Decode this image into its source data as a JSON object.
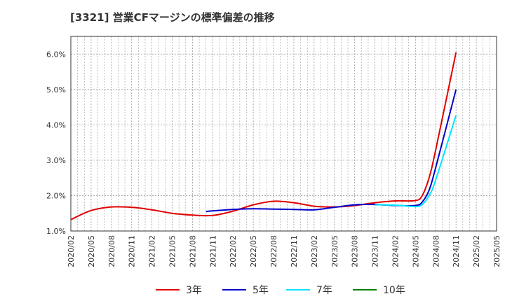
{
  "chart_data": {
    "type": "line",
    "title": "[3321]  営業CFマージンの標準偏差の推移",
    "xlabel": "",
    "ylabel": "",
    "ylim": [
      1.0,
      6.5
    ],
    "grid": true,
    "legend_position": "bottom",
    "y_ticks": [
      "1.0%",
      "2.0%",
      "3.0%",
      "4.0%",
      "5.0%",
      "6.0%"
    ],
    "x_ticks": [
      "2020/02",
      "2020/05",
      "2020/08",
      "2020/11",
      "2021/02",
      "2021/05",
      "2021/08",
      "2021/11",
      "2022/02",
      "2022/05",
      "2022/08",
      "2022/11",
      "2023/02",
      "2023/05",
      "2023/08",
      "2023/11",
      "2024/02",
      "2024/05",
      "2024/08",
      "2024/11",
      "2025/02",
      "2025/05"
    ],
    "series": [
      {
        "name": "3年",
        "color": "#e00000",
        "x": [
          "2020/02",
          "2020/05",
          "2020/08",
          "2020/11",
          "2021/02",
          "2021/05",
          "2021/08",
          "2021/11",
          "2022/02",
          "2022/05",
          "2022/08",
          "2022/11",
          "2023/02",
          "2023/05",
          "2023/08",
          "2023/11",
          "2024/02",
          "2024/05",
          "2024/06",
          "2024/07",
          "2024/08",
          "2024/11"
        ],
        "values": [
          1.32,
          1.58,
          1.68,
          1.67,
          1.6,
          1.5,
          1.45,
          1.44,
          1.56,
          1.74,
          1.84,
          1.8,
          1.7,
          1.68,
          1.72,
          1.8,
          1.85,
          1.86,
          2.0,
          2.5,
          3.3,
          6.05
        ]
      },
      {
        "name": "5年",
        "color": "#0000cc",
        "x": [
          "2021/10",
          "2021/11",
          "2022/02",
          "2022/05",
          "2022/08",
          "2022/11",
          "2023/02",
          "2023/05",
          "2023/08",
          "2023/11",
          "2024/02",
          "2024/05",
          "2024/06",
          "2024/07",
          "2024/08",
          "2024/11"
        ],
        "values": [
          1.55,
          1.57,
          1.61,
          1.63,
          1.62,
          1.61,
          1.6,
          1.67,
          1.74,
          1.75,
          1.72,
          1.72,
          1.82,
          2.15,
          2.8,
          5.0
        ]
      },
      {
        "name": "7年",
        "color": "#00e5ff",
        "x": [
          "2023/11",
          "2024/02",
          "2024/05",
          "2024/06",
          "2024/07",
          "2024/08",
          "2024/11"
        ],
        "values": [
          1.74,
          1.73,
          1.69,
          1.75,
          2.0,
          2.45,
          4.27
        ]
      },
      {
        "name": "10年",
        "color": "#008000",
        "x": [],
        "values": []
      }
    ]
  }
}
